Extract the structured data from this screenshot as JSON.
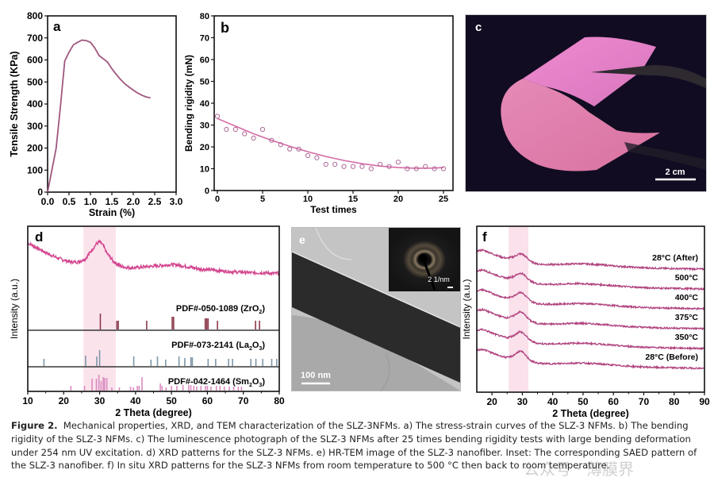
{
  "figure": {
    "caption_label": "Figure 2.",
    "caption_lines": [
      "Mechanical properties, XRD, and TEM characterization of the SLZ-3NFMs. a) The stress-strain curves of the SLZ-3 NFMs. b) The bending",
      "rigidity of the SLZ-3 NFMs. c) The luminescence photograph of the SLZ-3 NFMs after 25 times bending rigidity tests with large bending deformation",
      "under 254 nm UV excitation. d) XRD patterns for the SLZ-3 NFMs. e) HR-TEM image of the SLZ-3 nanofiber. Inset: The corresponding SAED pattern of",
      "the SLZ-3 nanofiber. f) In situ XRD patterns for the SLZ-3 NFMs from room temperature to 500 °C then back to room temperature."
    ],
    "watermark": "公众号 · 薄膜界",
    "colors": {
      "curve": "#a0567e",
      "xrd": "#d3468f",
      "highlight": "#f9d9e6",
      "zro2": "#8b3a4a",
      "la2o3": "#7e97a8",
      "sm2o3": "#d98bbf",
      "photo_bg": "#120c22",
      "film": "#e27ab8"
    }
  },
  "photo_c": {
    "label": "c",
    "scale_bar": "2 cm"
  },
  "tem_e": {
    "label": "e",
    "scale_bar": "100 nm",
    "inset_scale_bar": "2 1/nm"
  },
  "chart_data": [
    {
      "panel": "a",
      "type": "line",
      "title": "",
      "xlabel": "Strain (%)",
      "ylabel": "Tensile Strength (KPa)",
      "xlim": [
        0,
        3.0
      ],
      "ylim": [
        0,
        800
      ],
      "xticks": [
        "0.0",
        "0.5",
        "1.0",
        "1.5",
        "2.0",
        "2.5",
        "3.0"
      ],
      "yticks": [
        "0",
        "100",
        "200",
        "300",
        "400",
        "500",
        "600",
        "700",
        "800"
      ],
      "x": [
        0,
        0.1,
        0.2,
        0.3,
        0.4,
        0.5,
        0.6,
        0.7,
        0.8,
        0.9,
        1.0,
        1.1,
        1.2,
        1.3,
        1.4,
        1.5,
        1.6,
        1.7,
        1.8,
        1.9,
        2.0,
        2.1,
        2.2,
        2.3,
        2.4
      ],
      "y": [
        0,
        100,
        200,
        390,
        595,
        635,
        668,
        680,
        690,
        688,
        680,
        655,
        620,
        605,
        590,
        560,
        535,
        512,
        492,
        477,
        463,
        450,
        440,
        432,
        428
      ]
    },
    {
      "panel": "b",
      "type": "scatter",
      "title": "",
      "xlabel": "Test times",
      "ylabel": "Bending rigidity (mN)",
      "xlim": [
        0,
        25
      ],
      "ylim": [
        0,
        80
      ],
      "xticks": [
        "0",
        "5",
        "10",
        "15",
        "20",
        "25"
      ],
      "yticks": [
        "0",
        "10",
        "20",
        "30",
        "40",
        "50",
        "60",
        "70",
        "80"
      ],
      "x": [
        0,
        1,
        2,
        3,
        4,
        5,
        6,
        7,
        8,
        9,
        10,
        11,
        12,
        13,
        14,
        15,
        16,
        17,
        18,
        19,
        20,
        21,
        22,
        23,
        24,
        25
      ],
      "y": [
        34,
        28,
        28,
        26,
        24,
        28,
        23,
        21,
        19,
        19,
        16,
        15,
        12,
        12,
        11,
        11,
        11,
        10,
        12,
        11,
        13,
        10,
        10,
        11,
        10,
        10
      ],
      "fit": {
        "type": "quadratic",
        "x": [
          0,
          2,
          4,
          6,
          8,
          10,
          12,
          14,
          16,
          18,
          20,
          22,
          24,
          25
        ],
        "y": [
          33,
          29.5,
          26,
          23,
          20.3,
          17.8,
          15.6,
          13.8,
          12.3,
          11.2,
          10.5,
          10.2,
          10.3,
          10.5
        ]
      }
    },
    {
      "panel": "d",
      "type": "line",
      "title": "",
      "xlabel": "2 Theta (degree)",
      "ylabel": "Intensity (a.u.)",
      "xlim": [
        10,
        80
      ],
      "xticks": [
        "10",
        "20",
        "30",
        "40",
        "50",
        "60",
        "70",
        "80"
      ],
      "highlight_range": [
        25.5,
        34.5
      ],
      "pattern": {
        "x": [
          10,
          12,
          14,
          16,
          18,
          20,
          22,
          24,
          26,
          28,
          29,
          30,
          31,
          32,
          34,
          36,
          38,
          40,
          42,
          44,
          46,
          48,
          50,
          52,
          54,
          56,
          58,
          60,
          62,
          64,
          66,
          68,
          70,
          72,
          74,
          76,
          78,
          80
        ],
        "y": [
          0.8,
          0.74,
          0.68,
          0.62,
          0.57,
          0.53,
          0.5,
          0.5,
          0.55,
          0.7,
          0.78,
          0.82,
          0.76,
          0.64,
          0.5,
          0.43,
          0.41,
          0.41,
          0.42,
          0.43,
          0.44,
          0.45,
          0.46,
          0.45,
          0.43,
          0.41,
          0.39,
          0.38,
          0.37,
          0.36,
          0.35,
          0.34,
          0.34,
          0.33,
          0.33,
          0.33,
          0.32,
          0.32
        ]
      },
      "references": [
        {
          "name": "PDF#-050-1089 (ZrO2)",
          "label_main": "PDF#-050-1089 (ZrO",
          "label_sub": "2",
          "label_end": ")",
          "peaks": [
            [
              30.2,
              1.0
            ],
            [
              34.8,
              0.55
            ],
            [
              35.2,
              0.55
            ],
            [
              43.1,
              0.55
            ],
            [
              50.2,
              0.8
            ],
            [
              50.6,
              0.8
            ],
            [
              59.4,
              0.7
            ],
            [
              59.8,
              0.7
            ],
            [
              60.2,
              0.7
            ],
            [
              62.8,
              0.55
            ],
            [
              73.4,
              0.55
            ],
            [
              74.5,
              0.55
            ]
          ]
        },
        {
          "name": "PDF#-073-2141 (La2O3)",
          "label_main": "PDF#-073-2141 (La",
          "label_sub": "2",
          "label_end": "O",
          "label_sub2": "3",
          "label_end2": ")",
          "peaks": [
            [
              14.5,
              0.45
            ],
            [
              26.1,
              0.65
            ],
            [
              29.2,
              0.6
            ],
            [
              30.0,
              1.0
            ],
            [
              39.5,
              0.6
            ],
            [
              44.3,
              0.4
            ],
            [
              46.1,
              0.6
            ],
            [
              48.4,
              0.4
            ],
            [
              52.1,
              0.6
            ],
            [
              53.7,
              0.5
            ],
            [
              55.4,
              0.55
            ],
            [
              55.8,
              0.55
            ],
            [
              60.2,
              0.45
            ],
            [
              62.3,
              0.45
            ],
            [
              65.9,
              0.45
            ],
            [
              67.0,
              0.45
            ],
            [
              72.1,
              0.45
            ],
            [
              73.5,
              0.45
            ],
            [
              75.4,
              0.45
            ],
            [
              77.9,
              0.45
            ],
            [
              79.3,
              0.45
            ]
          ]
        },
        {
          "name": "PDF#-042-1464 (Sm2O3)",
          "label_main": "PDF#-042-1464 (Sm",
          "label_sub": "2",
          "label_end": "O",
          "label_sub2": "3",
          "label_end2": ")",
          "peaks": [
            [
              22.0,
              0.3
            ],
            [
              25.8,
              0.3
            ],
            [
              27.9,
              0.75
            ],
            [
              29.1,
              0.75
            ],
            [
              29.8,
              1.0
            ],
            [
              30.4,
              0.6
            ],
            [
              31.0,
              0.85
            ],
            [
              31.4,
              0.8
            ],
            [
              32.0,
              0.8
            ],
            [
              33.4,
              0.2
            ],
            [
              35.5,
              0.2
            ],
            [
              38.6,
              0.25
            ],
            [
              39.4,
              0.2
            ],
            [
              40.5,
              0.3
            ],
            [
              41.0,
              0.3
            ],
            [
              41.8,
              0.85
            ],
            [
              46.9,
              0.45
            ],
            [
              47.4,
              0.3
            ],
            [
              48.5,
              0.2
            ],
            [
              50.0,
              0.3
            ],
            [
              51.5,
              0.3
            ],
            [
              53.2,
              0.35
            ],
            [
              54.8,
              0.35
            ],
            [
              55.4,
              0.35
            ],
            [
              56.2,
              0.3
            ],
            [
              57.0,
              0.25
            ],
            [
              58.2,
              0.3
            ],
            [
              59.5,
              0.3
            ],
            [
              60.0,
              0.3
            ],
            [
              61.0,
              0.25
            ],
            [
              62.5,
              0.3
            ],
            [
              63.5,
              0.3
            ],
            [
              64.7,
              0.25
            ],
            [
              66.1,
              0.25
            ],
            [
              67.3,
              0.25
            ],
            [
              68.6,
              0.25
            ],
            [
              69.5,
              0.25
            ]
          ]
        }
      ]
    },
    {
      "panel": "f",
      "type": "line",
      "title": "",
      "xlabel": "2 Theta (degree)",
      "ylabel": "Intensity (a.u.)",
      "xlim": [
        15,
        90
      ],
      "xticks": [
        "20",
        "30",
        "40",
        "50",
        "60",
        "70",
        "80",
        "90"
      ],
      "highlight_range": [
        25.5,
        32
      ],
      "base_pattern": {
        "x": [
          15,
          17,
          19,
          21,
          23,
          25,
          27,
          28,
          29,
          30,
          31,
          32,
          33,
          35,
          38,
          41,
          45,
          49,
          53,
          57,
          61,
          65,
          70,
          75,
          80,
          85,
          90
        ],
        "y": [
          0.7,
          0.74,
          0.65,
          0.56,
          0.48,
          0.43,
          0.5,
          0.58,
          0.66,
          0.63,
          0.52,
          0.4,
          0.3,
          0.22,
          0.2,
          0.2,
          0.22,
          0.23,
          0.21,
          0.18,
          0.14,
          0.11,
          0.08,
          0.06,
          0.05,
          0.04,
          0.03
        ]
      },
      "series": [
        {
          "name": "28°C (After)",
          "peak_scale": 0.6
        },
        {
          "name": "500°C",
          "peak_scale": 0.7
        },
        {
          "name": "400°C",
          "peak_scale": 0.9
        },
        {
          "name": "375°C",
          "peak_scale": 0.95
        },
        {
          "name": "350°C",
          "peak_scale": 0.95
        },
        {
          "name": "28°C (Before)",
          "peak_scale": 1.05
        }
      ]
    }
  ]
}
